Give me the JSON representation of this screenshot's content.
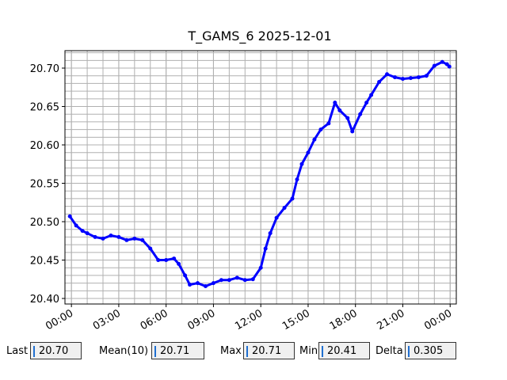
{
  "chart_data": {
    "type": "line",
    "title": "T_GAMS_6 2025-12-01",
    "x": [
      -0.1,
      0.3,
      0.7,
      1.0,
      1.5,
      2.0,
      2.5,
      3.0,
      3.5,
      4.0,
      4.5,
      5.0,
      5.5,
      6.0,
      6.5,
      6.8,
      7.2,
      7.5,
      8.0,
      8.5,
      9.0,
      9.5,
      10.0,
      10.5,
      11.0,
      11.5,
      12.0,
      12.3,
      12.6,
      13.0,
      13.5,
      14.0,
      14.3,
      14.6,
      15.0,
      15.4,
      15.8,
      16.3,
      16.7,
      17.0,
      17.5,
      17.8,
      18.3,
      18.7,
      19.0,
      19.5,
      20.0,
      20.5,
      21.0,
      21.5,
      22.0,
      22.5,
      23.0,
      23.5,
      23.8,
      23.95
    ],
    "series": [
      {
        "name": "T_GAMS_6",
        "color": "#0000ff",
        "values": [
          20.507,
          20.495,
          20.488,
          20.485,
          20.48,
          20.478,
          20.482,
          20.48,
          20.476,
          20.478,
          20.476,
          20.465,
          20.45,
          20.45,
          20.452,
          20.445,
          20.43,
          20.418,
          20.42,
          20.416,
          20.42,
          20.424,
          20.424,
          20.427,
          20.424,
          20.425,
          20.44,
          20.465,
          20.485,
          20.505,
          20.518,
          20.53,
          20.555,
          20.575,
          20.59,
          20.607,
          20.62,
          20.628,
          20.655,
          20.645,
          20.635,
          20.6175,
          20.64,
          20.655,
          20.665,
          20.682,
          20.692,
          20.688,
          20.686,
          20.687,
          20.688,
          20.69,
          20.703,
          20.708,
          20.705,
          20.702
        ]
      }
    ],
    "xlim": [
      -0.41,
      24.39
    ],
    "xticks": [
      {
        "value": 0,
        "label": "00:00"
      },
      {
        "value": 3,
        "label": "03:00"
      },
      {
        "value": 6,
        "label": "06:00"
      },
      {
        "value": 9,
        "label": "09:00"
      },
      {
        "value": 12,
        "label": "12:00"
      },
      {
        "value": 15,
        "label": "15:00"
      },
      {
        "value": 18,
        "label": "18:00"
      },
      {
        "value": 21,
        "label": "21:00"
      },
      {
        "value": 24,
        "label": "00:00"
      }
    ],
    "ylim": [
      20.3928,
      20.7227
    ],
    "yticks": [
      {
        "value": 20.4,
        "label": "20.40"
      },
      20.45,
      {
        "value": 20.5,
        "label": "20.50"
      },
      20.55,
      {
        "value": 20.6,
        "label": "20.60"
      },
      20.65,
      {
        "value": 20.7,
        "label": "20.70"
      }
    ],
    "grid": true,
    "minor_grid": true
  },
  "stats": [
    {
      "label": "Last",
      "value": "20.70"
    },
    {
      "label": "Mean(10)",
      "value": "20.71"
    },
    {
      "label": "Max",
      "value": "20.71"
    },
    {
      "label": "Min",
      "value": "20.41"
    },
    {
      "label": "Delta",
      "value": "0.305"
    }
  ]
}
